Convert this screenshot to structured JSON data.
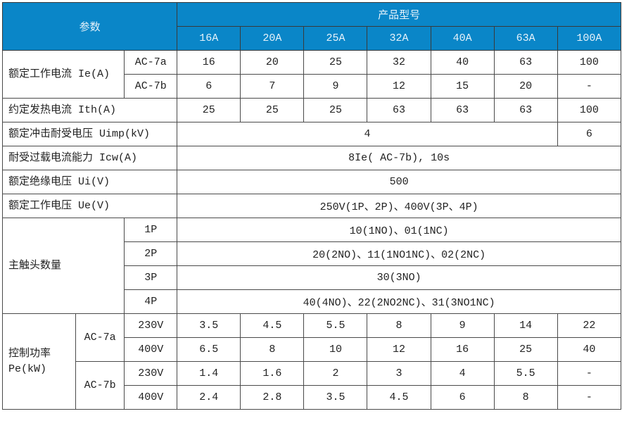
{
  "table": {
    "header": {
      "param": "参数",
      "product_model": "产品型号",
      "models": [
        "16A",
        "20A",
        "25A",
        "32A",
        "40A",
        "63A",
        "100A"
      ]
    },
    "rated_current": {
      "label": "额定工作电流 Ie(A)",
      "ac7a": {
        "label": "AC-7a",
        "values": [
          "16",
          "20",
          "25",
          "32",
          "40",
          "63",
          "100"
        ]
      },
      "ac7b": {
        "label": "AC-7b",
        "values": [
          "6",
          "7",
          "9",
          "12",
          "15",
          "20",
          "-"
        ]
      }
    },
    "thermal_current": {
      "label": "约定发热电流 Ith(A)",
      "values": [
        "25",
        "25",
        "25",
        "63",
        "63",
        "63",
        "100"
      ]
    },
    "impulse_voltage": {
      "label": "额定冲击耐受电压 Uimp(kV)",
      "values": [
        "4",
        "6"
      ]
    },
    "overload": {
      "label": "耐受过载电流能力 Icw(A)",
      "value": "8Ie( AC-7b), 10s"
    },
    "insulation_voltage": {
      "label": "额定绝缘电压 Ui(V)",
      "value": "500"
    },
    "operating_voltage": {
      "label": "额定工作电压 Ue(V)",
      "value": "250V(1P、2P)、400V(3P、4P)"
    },
    "main_contacts": {
      "label": "主触头数量",
      "rows": [
        {
          "poles": "1P",
          "value": "10(1NO)、01(1NC)"
        },
        {
          "poles": "2P",
          "value": "20(2NO)、11(1NO1NC)、02(2NC)"
        },
        {
          "poles": "3P",
          "value": "30(3NO)"
        },
        {
          "poles": "4P",
          "value": "40(4NO)、22(2NO2NC)、31(3NO1NC)"
        }
      ]
    },
    "control_power": {
      "label": "控制功率 Pe(kW)",
      "groups": [
        {
          "label": "AC-7a",
          "rows": [
            {
              "voltage": "230V",
              "values": [
                "3.5",
                "4.5",
                "5.5",
                "8",
                "9",
                "14",
                "22"
              ]
            },
            {
              "voltage": "400V",
              "values": [
                "6.5",
                "8",
                "10",
                "12",
                "16",
                "25",
                "40"
              ]
            }
          ]
        },
        {
          "label": "AC-7b",
          "rows": [
            {
              "voltage": "230V",
              "values": [
                "1.4",
                "1.6",
                "2",
                "3",
                "4",
                "5.5",
                "-"
              ]
            },
            {
              "voltage": "400V",
              "values": [
                "2.4",
                "2.8",
                "3.5",
                "4.5",
                "6",
                "8",
                "-"
              ]
            }
          ]
        }
      ]
    }
  }
}
